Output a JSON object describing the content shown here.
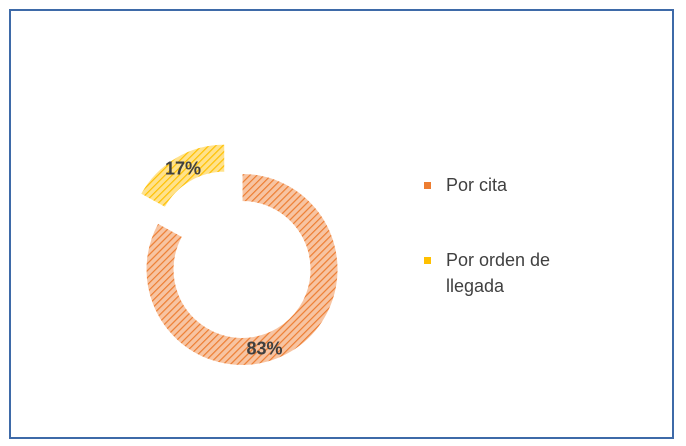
{
  "chart_data": {
    "type": "donut",
    "categories": [
      "Por cita",
      "Por orden de llegada"
    ],
    "values": [
      83,
      17
    ],
    "value_labels": [
      "83%",
      "17%"
    ],
    "colors": [
      "#ed7d31",
      "#ffc000"
    ],
    "legend": "right"
  }
}
